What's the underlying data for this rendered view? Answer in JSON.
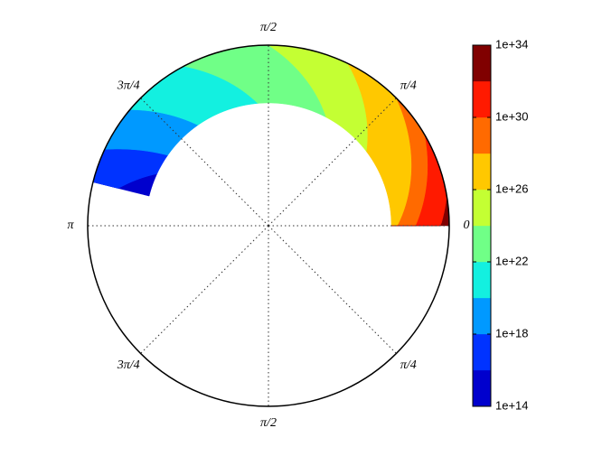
{
  "chart_data": {
    "type": "polar-contour",
    "thetaticks": [
      {
        "value": 0,
        "label": "0"
      },
      {
        "value": 45,
        "label": "π/4"
      },
      {
        "value": 90,
        "label": "π/2"
      },
      {
        "value": 135,
        "label": "3π/4"
      },
      {
        "value": 180,
        "label": "π"
      },
      {
        "value": 225,
        "label": "3π/4"
      },
      {
        "value": 270,
        "label": "π/2"
      },
      {
        "value": 315,
        "label": "π/4"
      }
    ],
    "grid": true,
    "rlim": [
      0,
      1
    ],
    "contour_r": [
      0.68,
      1
    ],
    "contour_theta": [
      0,
      166
    ],
    "levels": [
      100000000000000.0,
      1e+16,
      1e+18,
      1e+20,
      1e+22,
      1e+24,
      1e+26,
      1e+28,
      1e+30,
      1e+32,
      1e+34
    ],
    "colors": [
      "#0000cd",
      "#0033ff",
      "#0099ff",
      "#13f0e0",
      "#70ff87",
      "#c4ff33",
      "#ffc800",
      "#ff6a00",
      "#ff1a00",
      "#800000"
    ],
    "boundaries": [
      {
        "theta_inner": 155,
        "theta_outer": 175
      },
      {
        "theta_inner": 145,
        "theta_outer": 155
      },
      {
        "theta_inner": 125,
        "theta_outer": 140
      },
      {
        "theta_inner": 95,
        "theta_outer": 118
      },
      {
        "theta_inner": 62,
        "theta_outer": 90
      },
      {
        "theta_inner": 37,
        "theta_outer": 64
      },
      {
        "theta_inner": -5.5,
        "theta_outer": 45
      },
      {
        "theta_inner": -22,
        "theta_outer": 30
      },
      {
        "theta_inner": -55,
        "theta_outer": 9
      }
    ],
    "colorbar": {
      "log": true,
      "ylim": [
        100000000000000.0,
        1e+34
      ],
      "yticks": [
        {
          "value": 100000000000000.0,
          "label": "1e+14"
        },
        {
          "value": 1e+18,
          "label": "1e+18"
        },
        {
          "value": 1e+22,
          "label": "1e+22"
        },
        {
          "value": 1e+26,
          "label": "1e+26"
        },
        {
          "value": 1e+30,
          "label": "1e+30"
        },
        {
          "value": 1e+34,
          "label": "1e+34"
        }
      ]
    }
  }
}
